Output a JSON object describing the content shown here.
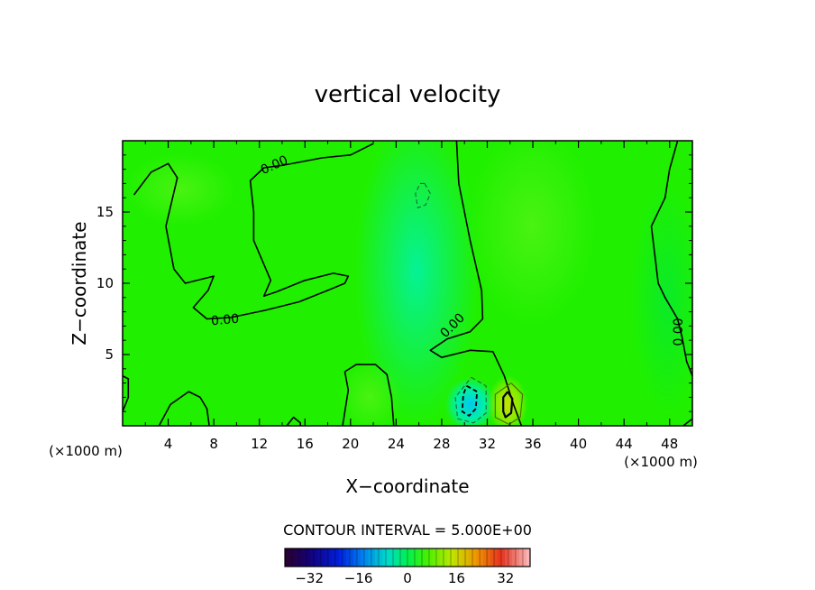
{
  "chart_data": {
    "type": "contour",
    "title": "vertical velocity",
    "xlabel": "X−coordinate",
    "ylabel": "Z−coordinate",
    "x_unit": "(×1000 m)",
    "y_unit": "(×1000 m)",
    "xlim": [
      0,
      50
    ],
    "ylim": [
      0,
      20
    ],
    "x_ticks": [
      4,
      8,
      12,
      16,
      20,
      24,
      28,
      32,
      36,
      40,
      44,
      48
    ],
    "y_ticks": [
      5,
      10,
      15
    ],
    "contour_interval_label": "CONTOUR INTERVAL = 5.000E+00",
    "contour_labels": [
      "0.00",
      "0.00",
      "0.00",
      "0.00"
    ],
    "colorbar": {
      "range": [
        -40,
        40
      ],
      "ticks": [
        -32,
        -16,
        0,
        16,
        32
      ],
      "tick_labels": [
        "−32",
        "−16",
        "0",
        "16",
        "32"
      ]
    },
    "field_color": "#20f000",
    "extrema": [
      {
        "x": 30.5,
        "z": 1.5,
        "kind": "min"
      },
      {
        "x": 33.8,
        "z": 1.5,
        "kind": "max"
      }
    ],
    "zero_contours": [
      [
        [
          0,
          3.5
        ],
        [
          0.5,
          3.3
        ],
        [
          0.5,
          2.0
        ],
        [
          0,
          1.0
        ]
      ],
      [
        [
          3.2,
          0
        ],
        [
          4.2,
          1.5
        ],
        [
          5.8,
          2.4
        ],
        [
          6.8,
          2.0
        ],
        [
          7.4,
          1.2
        ],
        [
          7.6,
          0
        ]
      ],
      [
        [
          14.4,
          0
        ],
        [
          15.0,
          0.6
        ],
        [
          15.6,
          0.2
        ],
        [
          15.6,
          0
        ]
      ],
      [
        [
          19.3,
          0
        ],
        [
          19.8,
          2.5
        ],
        [
          19.5,
          3.8
        ],
        [
          20.5,
          4.3
        ],
        [
          22.2,
          4.3
        ],
        [
          23.2,
          3.6
        ],
        [
          23.6,
          2.0
        ],
        [
          23.8,
          0
        ]
      ],
      [
        [
          1.0,
          16.2
        ],
        [
          2.5,
          17.8
        ],
        [
          4.0,
          18.4
        ],
        [
          4.8,
          17.4
        ],
        [
          3.8,
          14.0
        ],
        [
          4.5,
          11.0
        ],
        [
          5.5,
          10.0
        ],
        [
          8.0,
          10.5
        ],
        [
          7.5,
          9.5
        ],
        [
          6.2,
          8.3
        ],
        [
          7.4,
          7.5
        ],
        [
          9.5,
          7.6
        ],
        [
          12.5,
          8.1
        ],
        [
          15.5,
          8.7
        ],
        [
          18.0,
          9.5
        ],
        [
          19.5,
          10.0
        ],
        [
          19.8,
          10.5
        ],
        [
          18.5,
          10.7
        ],
        [
          16.0,
          10.2
        ],
        [
          13.5,
          9.4
        ],
        [
          12.4,
          9.1
        ],
        [
          13.0,
          10.2
        ],
        [
          11.5,
          13.0
        ],
        [
          11.5,
          15.0
        ],
        [
          11.2,
          17.2
        ],
        [
          12.4,
          18.1
        ],
        [
          14.2,
          18.3
        ],
        [
          17.5,
          18.8
        ],
        [
          20.0,
          19.0
        ],
        [
          22.0,
          19.8
        ]
      ],
      [
        [
          29.3,
          20
        ],
        [
          29.5,
          17.0
        ],
        [
          30.5,
          13.0
        ],
        [
          31.5,
          9.5
        ],
        [
          31.6,
          7.5
        ],
        [
          30.5,
          6.6
        ],
        [
          28.5,
          6.1
        ],
        [
          27.0,
          5.3
        ],
        [
          28.0,
          4.8
        ],
        [
          30.5,
          5.3
        ],
        [
          32.5,
          5.2
        ],
        [
          33.5,
          3.5
        ],
        [
          34.3,
          1.5
        ],
        [
          35.0,
          0
        ]
      ],
      [
        [
          48.7,
          20
        ],
        [
          48.0,
          18.0
        ],
        [
          47.6,
          16.0
        ],
        [
          46.4,
          14.0
        ],
        [
          47.0,
          10.0
        ],
        [
          47.6,
          9.0
        ],
        [
          48.7,
          7.5
        ],
        [
          49.1,
          6.2
        ],
        [
          49.5,
          4.5
        ],
        [
          50,
          3.5
        ]
      ],
      [
        [
          49.2,
          0
        ],
        [
          50,
          0.5
        ]
      ]
    ],
    "negative_contours": [
      [
        [
          26.5,
          17.0
        ],
        [
          27.0,
          16.3
        ],
        [
          26.6,
          15.5
        ],
        [
          25.9,
          15.3
        ],
        [
          25.7,
          16.3
        ],
        [
          26.1,
          17.0
        ],
        [
          26.5,
          17.0
        ]
      ],
      [
        [
          30.2,
          2.8
        ],
        [
          31.1,
          2.4
        ],
        [
          31.0,
          1.2
        ],
        [
          30.4,
          0.7
        ],
        [
          29.8,
          1.0
        ],
        [
          29.9,
          2.2
        ],
        [
          30.2,
          2.8
        ]
      ],
      [
        [
          30.6,
          3.4
        ],
        [
          31.9,
          2.8
        ],
        [
          31.9,
          0.9
        ],
        [
          30.8,
          0.2
        ],
        [
          29.4,
          0.5
        ],
        [
          29.2,
          2.0
        ],
        [
          30.6,
          3.4
        ]
      ]
    ],
    "positive_contours": [
      [
        [
          33.8,
          2.4
        ],
        [
          34.2,
          1.9
        ],
        [
          34.1,
          0.9
        ],
        [
          33.6,
          0.6
        ],
        [
          33.4,
          1.0
        ],
        [
          33.4,
          2.0
        ],
        [
          33.8,
          2.4
        ]
      ],
      [
        [
          34.1,
          3.0
        ],
        [
          35.1,
          2.2
        ],
        [
          34.9,
          0.6
        ],
        [
          33.9,
          0.1
        ],
        [
          32.7,
          0.6
        ],
        [
          32.7,
          2.2
        ],
        [
          34.1,
          3.0
        ]
      ]
    ]
  }
}
